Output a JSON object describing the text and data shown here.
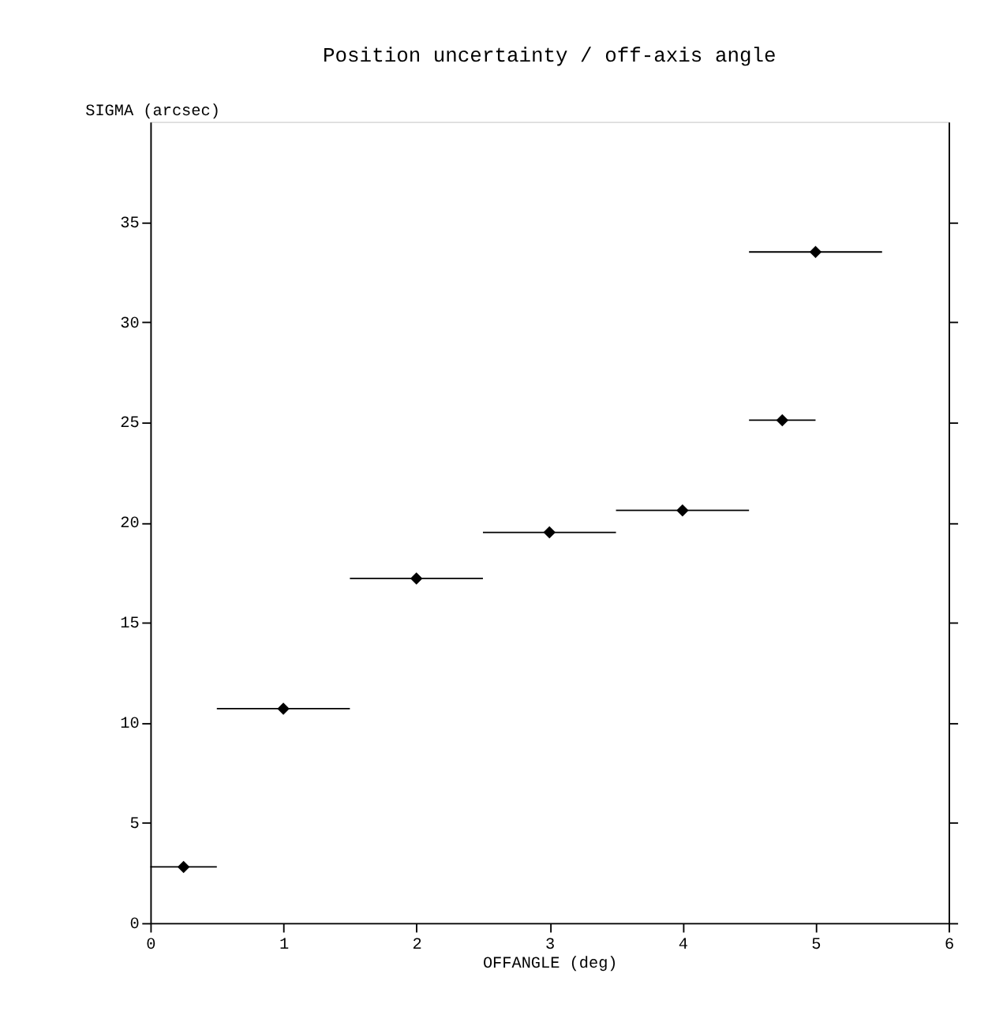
{
  "chart_data": {
    "type": "scatter",
    "title": "Position uncertainty / off-axis angle",
    "xlabel": "OFFANGLE (deg)",
    "ylabel": "SIGMA (arcsec)",
    "x": [
      0.25,
      1,
      2,
      3,
      4,
      4.75,
      5
    ],
    "values": [
      2.8,
      10.7,
      17.2,
      19.5,
      20.6,
      25.1,
      33.5
    ],
    "xerrors": [
      0.25,
      0.5,
      0.5,
      0.5,
      0.5,
      0.25,
      0.5
    ],
    "color": "#000000",
    "marker": "diamond",
    "xlim": [
      0,
      6
    ],
    "xticks": [
      0,
      1,
      2,
      3,
      4,
      5,
      6
    ],
    "ylim": [
      0,
      40
    ],
    "yticks": [
      0,
      5,
      10,
      15,
      20,
      25,
      30,
      35
    ],
    "grid": false
  }
}
